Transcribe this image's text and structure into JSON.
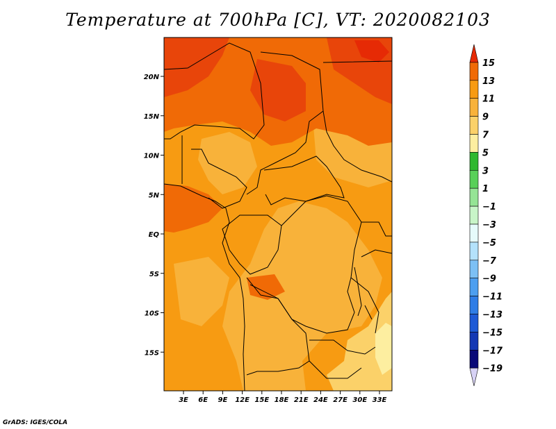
{
  "title": "Temperature at 700hPa [C], VT: 2020082103",
  "credit": "GrADS: IGES/COLA",
  "map": {
    "lon_range": [
      0,
      35
    ],
    "lat_range": [
      -20,
      25
    ],
    "y_ticks": [
      {
        "lat": 20,
        "label": "20N"
      },
      {
        "lat": 15,
        "label": "15N"
      },
      {
        "lat": 10,
        "label": "10N"
      },
      {
        "lat": 5,
        "label": "5N"
      },
      {
        "lat": 0,
        "label": "EQ"
      },
      {
        "lat": -5,
        "label": "5S"
      },
      {
        "lat": -10,
        "label": "10S"
      },
      {
        "lat": -15,
        "label": "15S"
      }
    ],
    "x_ticks": [
      {
        "lon": 3,
        "label": "3E"
      },
      {
        "lon": 6,
        "label": "6E"
      },
      {
        "lon": 9,
        "label": "9E"
      },
      {
        "lon": 12,
        "label": "12E"
      },
      {
        "lon": 15,
        "label": "15E"
      },
      {
        "lon": 18,
        "label": "18E"
      },
      {
        "lon": 21,
        "label": "21E"
      },
      {
        "lon": 24,
        "label": "24E"
      },
      {
        "lon": 27,
        "label": "27E"
      },
      {
        "lon": 30,
        "label": "30E"
      },
      {
        "lon": 33,
        "label": "33E"
      }
    ]
  },
  "legend": {
    "levels": [
      "15",
      "13",
      "11",
      "9",
      "7",
      "5",
      "3",
      "1",
      "−1",
      "−3",
      "−5",
      "−7",
      "−9",
      "−11",
      "−13",
      "−15",
      "−17",
      "−19"
    ],
    "colors": [
      "#e62a05",
      "#f06a06",
      "#f79b12",
      "#f8b23a",
      "#fbd169",
      "#fdeea0",
      "#2fb82f",
      "#58d058",
      "#95e495",
      "#c8f5c8",
      "#e6fbfb",
      "#b4e2fb",
      "#7cc0f5",
      "#4d9ff0",
      "#2f7de6",
      "#1e5ad6",
      "#1438b4",
      "#0a0a78",
      "#d7d2f5"
    ]
  }
}
